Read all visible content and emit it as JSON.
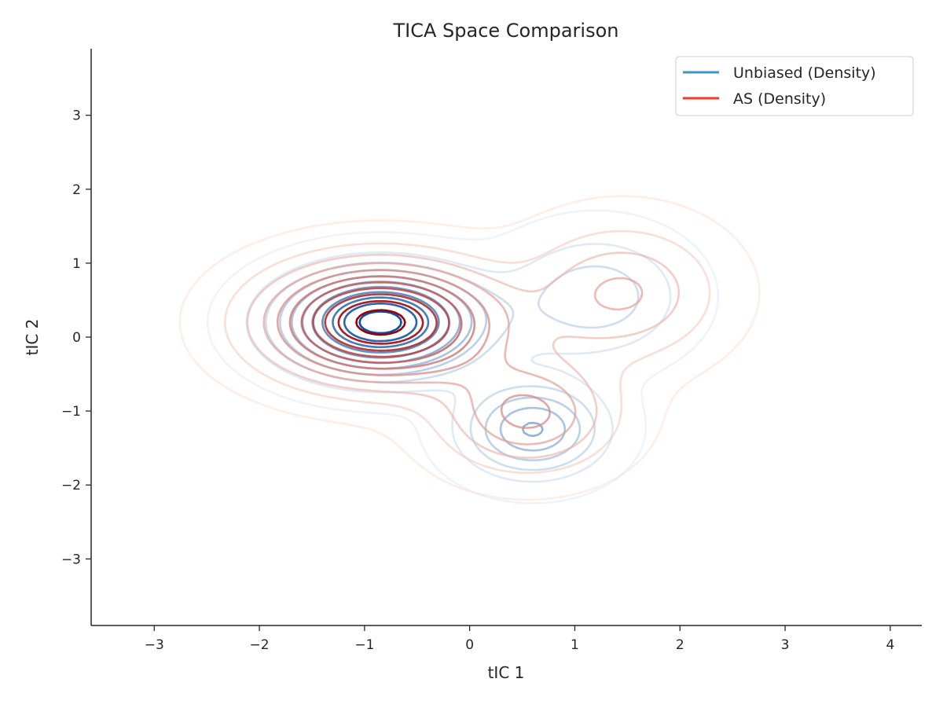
{
  "chart_data": {
    "type": "contour",
    "title": "TICA Space Comparison",
    "xlabel": "tIC 1",
    "ylabel": "tIC 2",
    "xlim": [
      -3.6,
      4.3
    ],
    "ylim": [
      -3.9,
      3.9
    ],
    "xticks": [
      -3,
      -2,
      -1,
      0,
      1,
      2,
      3,
      4
    ],
    "yticks": [
      -3,
      -2,
      -1,
      0,
      1,
      2,
      3
    ],
    "xtick_labels": [
      "−3",
      "−2",
      "−1",
      "0",
      "1",
      "2",
      "3",
      "4"
    ],
    "ytick_labels": [
      "−3",
      "−2",
      "−1",
      "0",
      "1",
      "2",
      "3"
    ],
    "grid": false,
    "legend_position": "top-right",
    "levels": 11,
    "series": [
      {
        "name": "Unbiased (Density)",
        "legend_color": "#4292c6",
        "color_light": "#deebf7",
        "color_dark": "#08519c",
        "components": [
          {
            "cx": -0.85,
            "cy": 0.2,
            "sx": 0.62,
            "sy": 0.46,
            "w": 1.0
          },
          {
            "cx": 0.6,
            "cy": -1.25,
            "sx": 0.45,
            "sy": 0.42,
            "w": 0.5
          },
          {
            "cx": 1.2,
            "cy": 0.55,
            "sx": 0.55,
            "sy": 0.55,
            "w": 0.28
          }
        ]
      },
      {
        "name": "AS (Density)",
        "legend_color": "#ef3b2c",
        "color_light": "#fee0d2",
        "color_dark": "#99000d",
        "components": [
          {
            "cx": -0.85,
            "cy": 0.2,
            "sx": 0.72,
            "sy": 0.52,
            "w": 1.0
          },
          {
            "cx": 0.55,
            "cy": -1.05,
            "sx": 0.55,
            "sy": 0.5,
            "w": 0.42
          },
          {
            "cx": 1.45,
            "cy": 0.6,
            "sx": 0.6,
            "sy": 0.6,
            "w": 0.32
          }
        ]
      }
    ]
  }
}
